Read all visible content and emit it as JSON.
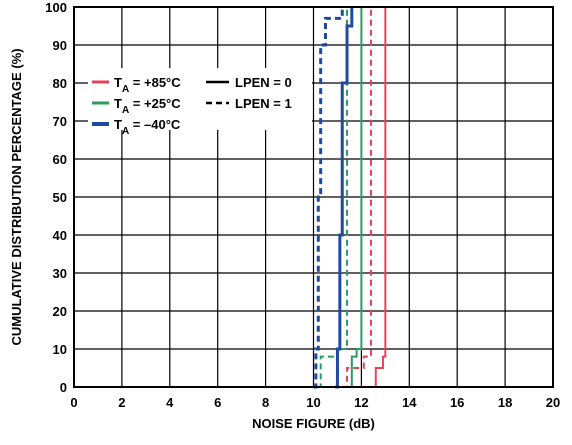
{
  "chart_data": {
    "type": "line",
    "xlabel": "NOISE FIGURE (dB)",
    "ylabel": "CUMULATIVE DISTRIBUTION PERCENTAGE (%)",
    "xlim": [
      0,
      20
    ],
    "ylim": [
      0,
      100
    ],
    "xticks": [
      "0",
      "2",
      "4",
      "6",
      "8",
      "10",
      "12",
      "14",
      "16",
      "18",
      "20"
    ],
    "yticks": [
      "0",
      "10",
      "20",
      "30",
      "40",
      "50",
      "60",
      "70",
      "80",
      "90",
      "100"
    ],
    "grid": true,
    "legend_placement": "top-left",
    "legend": {
      "temps": [
        {
          "prefix": "T",
          "sub": "A",
          "suffix": " = +85°C",
          "color": "#e8415a"
        },
        {
          "prefix": "T",
          "sub": "A",
          "suffix": " = +25°C",
          "color": "#2e9a5e"
        },
        {
          "prefix": "T",
          "sub": "A",
          "suffix": " = –40°C",
          "color": "#1f4aa0"
        }
      ],
      "modes": [
        {
          "label": "LPEN = 0",
          "dash": "solid"
        },
        {
          "label": "LPEN = 1",
          "dash": "dashed"
        }
      ]
    },
    "series": [
      {
        "color": "#e8415a",
        "dash": "solid",
        "x": [
          12.6,
          12.6,
          12.9,
          13.0
        ],
        "y": [
          0,
          5,
          8,
          100
        ]
      },
      {
        "color": "#e8415a",
        "dash": "dashed",
        "x": [
          11.2,
          11.4,
          12.1,
          12.4
        ],
        "y": [
          0,
          5,
          8,
          100
        ]
      },
      {
        "color": "#2e9a5e",
        "dash": "solid",
        "x": [
          11.6,
          11.6,
          11.8,
          12.0
        ],
        "y": [
          0,
          8,
          10,
          100
        ]
      },
      {
        "color": "#2e9a5e",
        "dash": "dashed",
        "x": [
          10.2,
          10.3,
          11.0,
          11.4
        ],
        "y": [
          0,
          8,
          10,
          100
        ]
      },
      {
        "color": "#1f4aa0",
        "dash": "solid",
        "x": [
          10.9,
          11.0,
          11.1,
          11.2,
          11.4,
          11.6
        ],
        "y": [
          0,
          10,
          40,
          80,
          95,
          100
        ]
      },
      {
        "color": "#1f4aa0",
        "dash": "dashed",
        "x": [
          10.0,
          10.1,
          10.2,
          10.3,
          10.5,
          11.0,
          11.2
        ],
        "y": [
          0,
          10,
          50,
          90,
          97,
          97,
          100
        ]
      }
    ]
  }
}
